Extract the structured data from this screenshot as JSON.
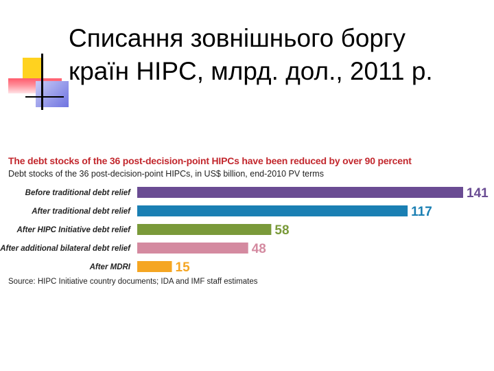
{
  "slide": {
    "title_line1": "Списання зовнішнього боргу",
    "title_line2": "країн HIPC, млрд. дол., 2011 р."
  },
  "chart_data": {
    "type": "bar",
    "orientation": "horizontal",
    "title": "The debt stocks of the 36 post-decision-point HIPCs have been reduced by over 90 percent",
    "subtitle": "Debt stocks of the 36 post-decision-point HIPCs, in US$ billion, end-2010 PV terms",
    "source": "Source: HIPC Initiative country documents; IDA and IMF staff estimates",
    "categories": [
      "Before traditional debt relief",
      "After traditional debt relief",
      "After HIPC Initiative debt relief",
      "After additional bilateral debt relief",
      "After MDRI"
    ],
    "values": [
      141,
      117,
      58,
      48,
      15
    ],
    "value_labels": [
      "141",
      "117",
      "58",
      "48",
      "15"
    ],
    "colors": [
      "#6a4c93",
      "#1a7fb3",
      "#7a9a3a",
      "#d48aa0",
      "#f5a623"
    ],
    "xlim": [
      0,
      141
    ],
    "grid": false,
    "legend": "none"
  }
}
